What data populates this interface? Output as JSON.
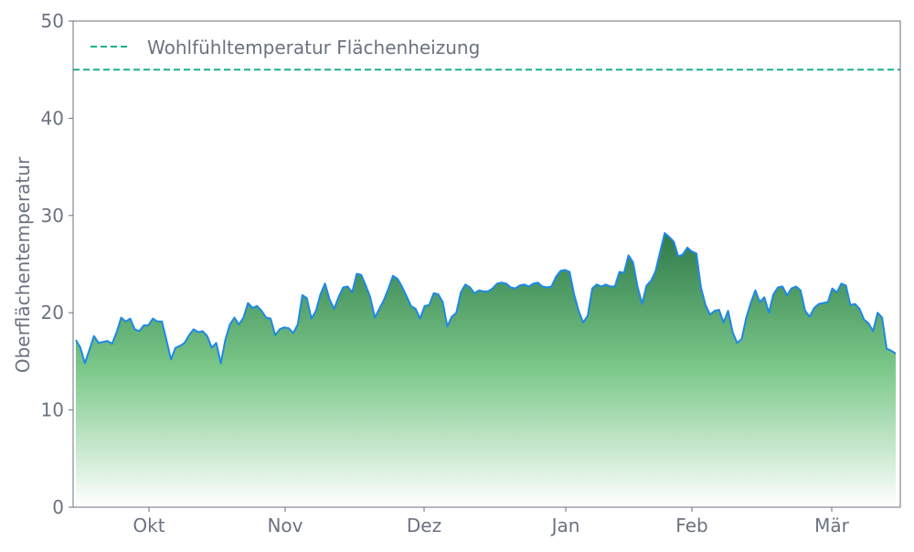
{
  "chart_data": {
    "type": "area",
    "title": "",
    "xlabel": "",
    "ylabel": "Oberflächentemperatur",
    "ylim": [
      0,
      50
    ],
    "yticks": [
      "0",
      "10",
      "20",
      "30",
      "40",
      "50"
    ],
    "xticks": [
      "Okt",
      "Nov",
      "Dez",
      "Jan",
      "Feb",
      "Mär"
    ],
    "grid": false,
    "legend_position": "top-left",
    "colors": {
      "line": "#1e88e5",
      "fill_top": "#2f7a4a",
      "fill_mid": "#7cc98a",
      "fill_bottom": "#ffffff",
      "reference": "#1aaf8b",
      "text": "#6b7280",
      "axis": "#6b7280"
    },
    "reference_line": {
      "name": "Wohlfühltemperatur Flächenheizung",
      "value": 45
    },
    "values": [
      17.2,
      16.4,
      14.8,
      16.2,
      17.6,
      16.9,
      17.0,
      17.1,
      16.8,
      18.0,
      19.5,
      19.1,
      19.4,
      18.3,
      18.1,
      18.7,
      18.7,
      19.4,
      19.1,
      19.1,
      17.2,
      15.2,
      16.4,
      16.6,
      16.9,
      17.7,
      18.3,
      18.0,
      18.1,
      17.6,
      16.4,
      16.9,
      14.8,
      17.2,
      18.8,
      19.5,
      18.8,
      19.5,
      21.0,
      20.5,
      20.7,
      20.2,
      19.5,
      19.4,
      17.7,
      18.3,
      18.5,
      18.4,
      17.9,
      18.8,
      21.8,
      21.5,
      19.4,
      20.2,
      21.9,
      23.0,
      21.4,
      20.4,
      21.6,
      22.6,
      22.7,
      22.1,
      24.0,
      23.9,
      22.8,
      21.6,
      19.5,
      20.4,
      21.3,
      22.5,
      23.8,
      23.5,
      22.7,
      21.7,
      20.7,
      20.4,
      19.4,
      20.7,
      20.8,
      22.0,
      21.9,
      21.1,
      18.6,
      19.6,
      20.0,
      22.1,
      22.9,
      22.6,
      22.0,
      22.3,
      22.2,
      22.2,
      22.5,
      23.0,
      23.1,
      23.0,
      22.6,
      22.5,
      22.8,
      22.9,
      22.7,
      23.0,
      23.1,
      22.7,
      22.6,
      22.7,
      23.7,
      24.3,
      24.4,
      24.2,
      21.9,
      20.2,
      19.0,
      19.7,
      22.5,
      22.9,
      22.7,
      22.9,
      22.7,
      22.7,
      24.2,
      24.1,
      25.9,
      25.2,
      22.7,
      20.9,
      22.8,
      23.3,
      24.3,
      26.3,
      28.2,
      27.8,
      27.3,
      25.8,
      26.0,
      26.7,
      26.3,
      26.1,
      22.6,
      20.8,
      19.8,
      20.2,
      20.3,
      19.0,
      20.2,
      18.0,
      16.9,
      17.3,
      19.5,
      21.0,
      22.3,
      21.1,
      21.6,
      20.0,
      21.9,
      22.6,
      22.7,
      21.8,
      22.5,
      22.7,
      22.3,
      20.2,
      19.6,
      20.5,
      20.9,
      21.0,
      21.1,
      22.5,
      22.1,
      23.0,
      22.8,
      20.8,
      20.9,
      20.4,
      19.3,
      18.9,
      18.1,
      20.0,
      19.5,
      16.3,
      16.1,
      15.8
    ]
  }
}
